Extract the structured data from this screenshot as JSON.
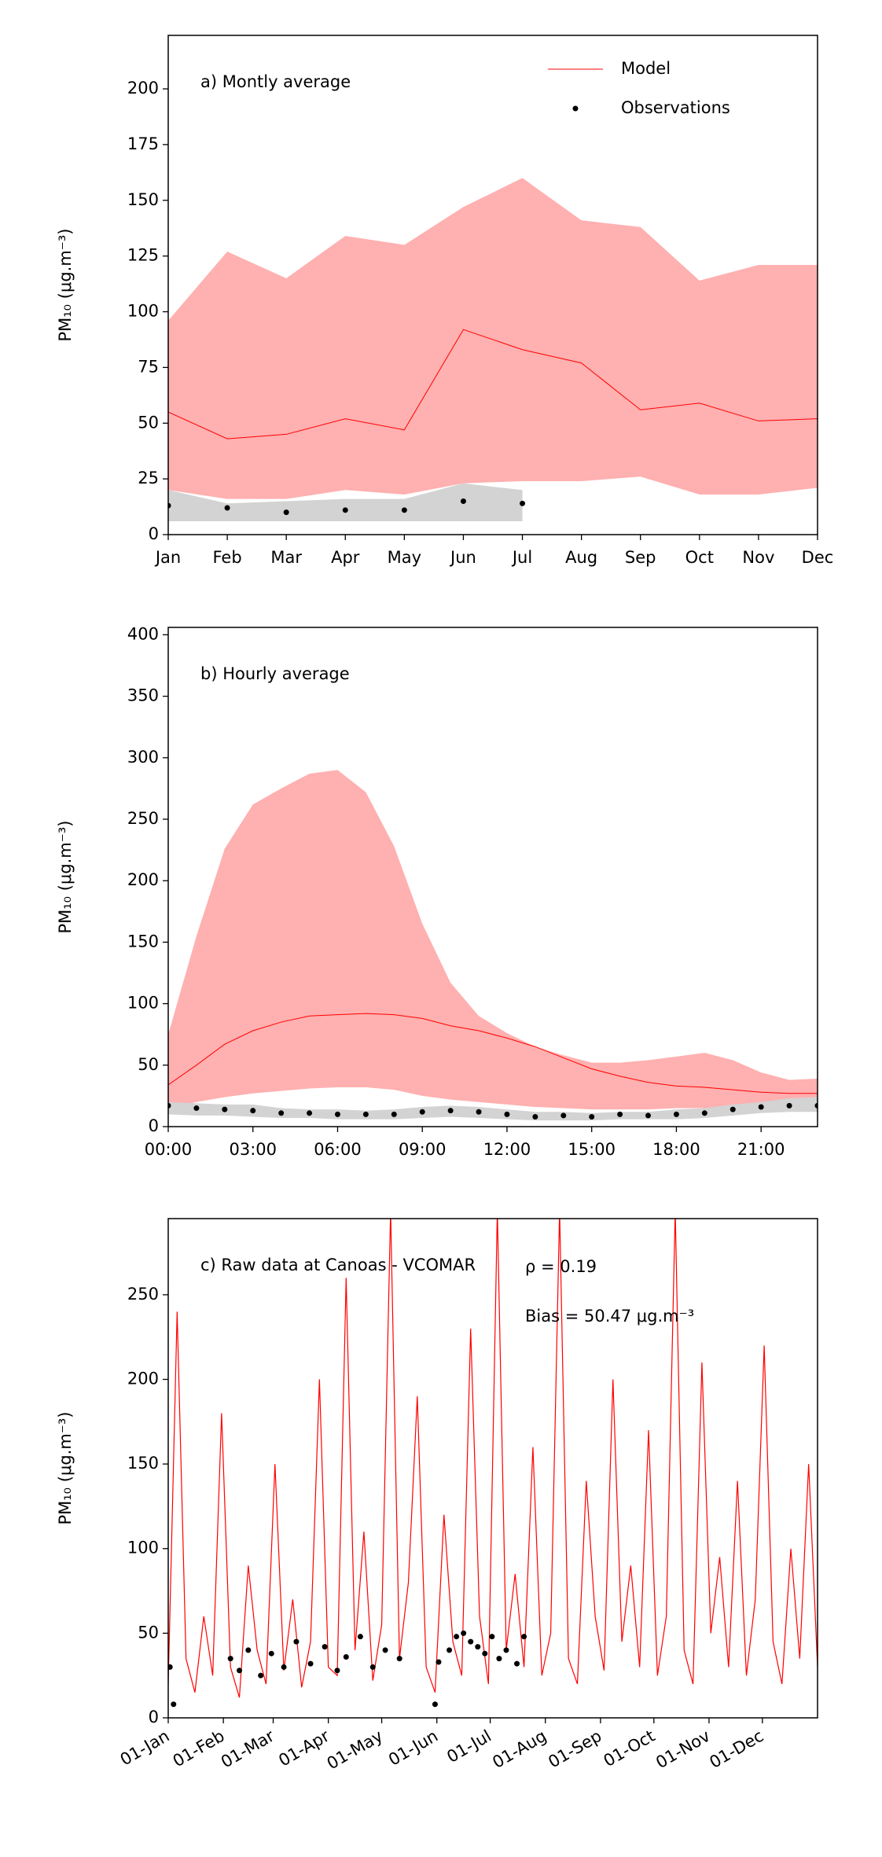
{
  "chart_data": [
    {
      "type": "line",
      "title": "a) Montly average",
      "ylabel": "PM₁₀ (μg.m⁻³)",
      "categories": [
        "Jan",
        "Feb",
        "Mar",
        "Apr",
        "May",
        "Jun",
        "Jul",
        "Aug",
        "Sep",
        "Oct",
        "Nov",
        "Dec"
      ],
      "ylim": [
        0,
        224
      ],
      "yticks": [
        0,
        25,
        50,
        75,
        100,
        125,
        150,
        175,
        200
      ],
      "legend": "upper right",
      "series": [
        {
          "name": "Model",
          "color": "#ff0000",
          "band_color": "#ffb0b0",
          "marker": "line",
          "values": [
            55,
            43,
            45,
            52,
            47,
            92,
            83,
            77,
            56,
            59,
            51,
            52
          ],
          "upper": [
            96,
            127,
            115,
            134,
            130,
            147,
            160,
            141,
            138,
            114,
            121,
            121
          ],
          "lower": [
            20,
            16,
            16,
            20,
            18,
            23,
            24,
            24,
            26,
            18,
            18,
            21
          ]
        },
        {
          "name": "Observations",
          "color": "#000000",
          "band_color": "#d3d3d3",
          "marker": "dot",
          "values": [
            13,
            12,
            10,
            11,
            11,
            15,
            14,
            null,
            null,
            null,
            null,
            null
          ],
          "upper": [
            20,
            14,
            15,
            16,
            16,
            23,
            20,
            null,
            null,
            null,
            null,
            null
          ],
          "lower": [
            6,
            6,
            6,
            6,
            6,
            6,
            6,
            null,
            null,
            null,
            null,
            null
          ]
        }
      ]
    },
    {
      "type": "line",
      "title": "b) Hourly average",
      "ylabel": "PM₁₀ (μg.m⁻³)",
      "x": [
        0,
        1,
        2,
        3,
        4,
        5,
        6,
        7,
        8,
        9,
        10,
        11,
        12,
        13,
        14,
        15,
        16,
        17,
        18,
        19,
        20,
        21,
        22,
        23
      ],
      "xlim": [
        0,
        23
      ],
      "xticks": [
        {
          "value": 0,
          "label": "00:00"
        },
        {
          "value": 3,
          "label": "03:00"
        },
        {
          "value": 6,
          "label": "06:00"
        },
        {
          "value": 9,
          "label": "09:00"
        },
        {
          "value": 12,
          "label": "12:00"
        },
        {
          "value": 15,
          "label": "15:00"
        },
        {
          "value": 18,
          "label": "18:00"
        },
        {
          "value": 21,
          "label": "21:00"
        }
      ],
      "ylim": [
        0,
        406
      ],
      "yticks": [
        0,
        50,
        100,
        150,
        200,
        250,
        300,
        350,
        400
      ],
      "series": [
        {
          "color": "#ff0000",
          "band_color": "#ffb0b0",
          "marker": "line",
          "values": [
            34,
            50,
            67,
            78,
            85,
            90,
            91,
            92,
            91,
            88,
            82,
            78,
            72,
            65,
            56,
            47,
            41,
            36,
            33,
            32,
            30,
            28,
            27,
            27
          ],
          "upper": [
            75,
            155,
            226,
            262,
            275,
            287,
            290,
            272,
            228,
            165,
            117,
            90,
            76,
            65,
            58,
            52,
            52,
            54,
            57,
            60,
            54,
            44,
            38,
            39
          ],
          "lower": [
            15,
            20,
            24,
            27,
            29,
            31,
            32,
            32,
            30,
            25,
            22,
            20,
            18,
            16,
            15,
            14,
            14,
            14,
            15,
            15,
            16,
            18,
            20,
            20
          ]
        },
        {
          "color": "#000000",
          "band_color": "#d3d3d3",
          "marker": "dot",
          "values": [
            17,
            15,
            14,
            13,
            11,
            11,
            10,
            10,
            10,
            12,
            13,
            12,
            10,
            8,
            9,
            8,
            10,
            9,
            10,
            11,
            14,
            16,
            17,
            17
          ],
          "upper": [
            20,
            19,
            18,
            18,
            15,
            14,
            14,
            13,
            14,
            16,
            17,
            16,
            14,
            12,
            12,
            11,
            12,
            12,
            14,
            15,
            18,
            20,
            23,
            24
          ],
          "lower": [
            10,
            9,
            9,
            8,
            7,
            7,
            6,
            6,
            6,
            7,
            8,
            7,
            6,
            5,
            5,
            5,
            6,
            6,
            6,
            7,
            9,
            11,
            12,
            12
          ]
        }
      ]
    },
    {
      "type": "line",
      "title": "c) Raw data at Canoas - VCOMAR",
      "ylabel": "PM₁₀ (μg.m⁻³)",
      "annotations": [
        "ρ = 0.19",
        "Bias = 50.47 μg.m⁻³"
      ],
      "xlim": [
        0,
        365
      ],
      "xticks": [
        {
          "value": 0,
          "label": "01-Jan"
        },
        {
          "value": 31,
          "label": "01-Feb"
        },
        {
          "value": 59,
          "label": "01-Mar"
        },
        {
          "value": 90,
          "label": "01-Apr"
        },
        {
          "value": 120,
          "label": "01-May"
        },
        {
          "value": 151,
          "label": "01-Jun"
        },
        {
          "value": 181,
          "label": "01-Jul"
        },
        {
          "value": 212,
          "label": "01-Aug"
        },
        {
          "value": 243,
          "label": "01-Sep"
        },
        {
          "value": 273,
          "label": "01-Oct"
        },
        {
          "value": 304,
          "label": "01-Nov"
        },
        {
          "value": 334,
          "label": "01-Dec"
        }
      ],
      "ylim": [
        0,
        295
      ],
      "yticks": [
        0,
        50,
        100,
        150,
        200,
        250
      ],
      "series": [
        {
          "color": "#ff0000",
          "marker": "line",
          "x": [
            0,
            5,
            10,
            15,
            20,
            25,
            30,
            35,
            40,
            45,
            50,
            55,
            60,
            65,
            70,
            75,
            80,
            85,
            90,
            95,
            100,
            105,
            110,
            115,
            120,
            125,
            130,
            135,
            140,
            145,
            150,
            155,
            160,
            165,
            170,
            175,
            180,
            185,
            190,
            195,
            200,
            205,
            210,
            215,
            220,
            225,
            230,
            235,
            240,
            245,
            250,
            255,
            260,
            265,
            270,
            275,
            280,
            285,
            290,
            295,
            300,
            305,
            310,
            315,
            320,
            325,
            330,
            335,
            340,
            345,
            350,
            355,
            360,
            365
          ],
          "values": [
            20,
            240,
            35,
            15,
            60,
            25,
            180,
            30,
            12,
            90,
            40,
            20,
            150,
            28,
            70,
            18,
            45,
            200,
            30,
            25,
            260,
            40,
            110,
            22,
            55,
            300,
            35,
            80,
            190,
            30,
            15,
            120,
            45,
            25,
            230,
            60,
            20,
            300,
            40,
            85,
            30,
            160,
            25,
            50,
            300,
            35,
            20,
            140,
            60,
            28,
            200,
            45,
            90,
            30,
            170,
            25,
            60,
            300,
            40,
            20,
            210,
            50,
            95,
            30,
            140,
            25,
            70,
            220,
            45,
            20,
            100,
            35,
            150,
            30
          ]
        },
        {
          "color": "#000000",
          "marker": "dot",
          "x": [
            1,
            3,
            35,
            40,
            45,
            52,
            58,
            65,
            72,
            80,
            88,
            95,
            100,
            108,
            115,
            122,
            130,
            150,
            152,
            158,
            162,
            166,
            170,
            174,
            178,
            182,
            186,
            190,
            196,
            200
          ],
          "values": [
            30,
            8,
            35,
            28,
            40,
            25,
            38,
            30,
            45,
            32,
            42,
            28,
            36,
            48,
            30,
            40,
            35,
            8,
            33,
            40,
            48,
            50,
            45,
            42,
            38,
            48,
            35,
            40,
            32,
            48
          ]
        }
      ]
    }
  ]
}
